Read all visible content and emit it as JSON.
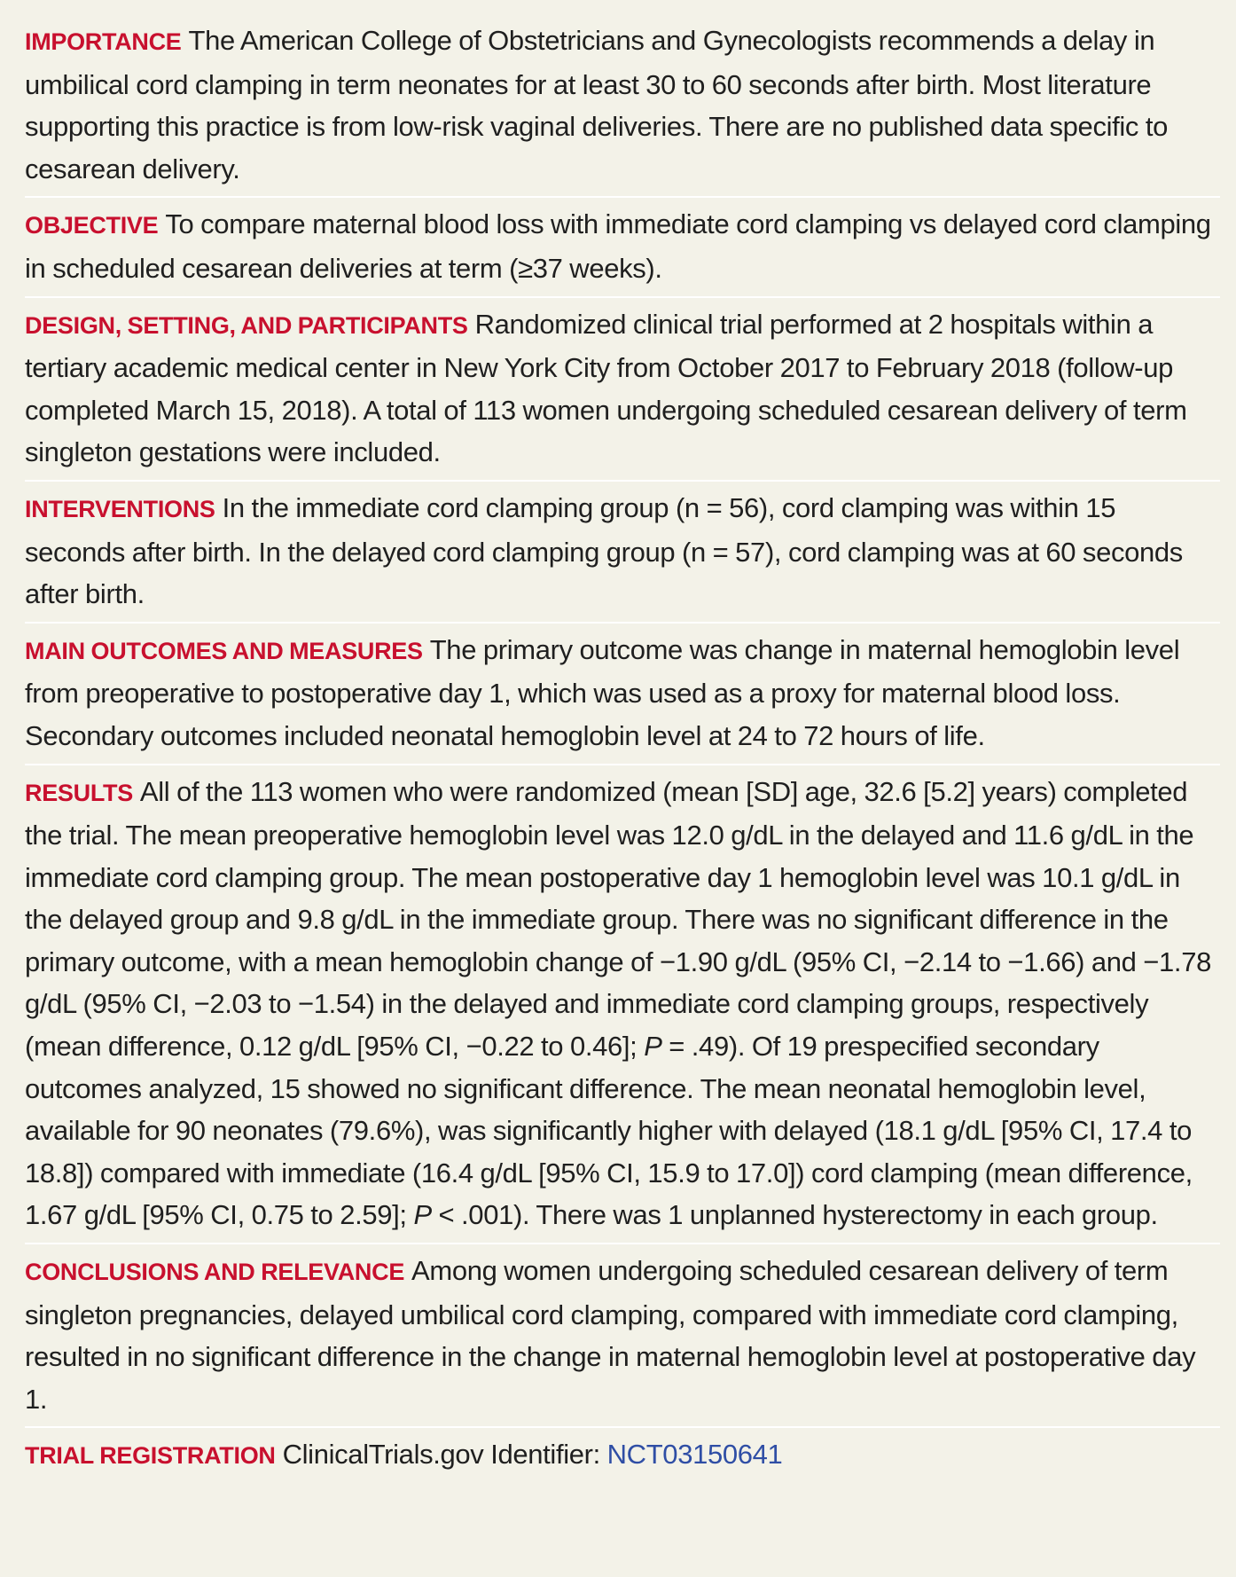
{
  "sections": {
    "importance": {
      "heading": "IMPORTANCE",
      "text": "The American College of Obstetricians and Gynecologists recommends a delay in umbilical cord clamping in term neonates for at least 30 to 60 seconds after birth. Most literature supporting this practice is from low-risk vaginal deliveries. There are no published data specific to cesarean delivery."
    },
    "objective": {
      "heading": "OBJECTIVE",
      "text": "To compare maternal blood loss with immediate cord clamping vs delayed cord clamping in scheduled cesarean deliveries at term (≥37 weeks)."
    },
    "design": {
      "heading": "DESIGN, SETTING, AND PARTICIPANTS",
      "text": "Randomized clinical trial performed at 2 hospitals within a tertiary academic medical center in New York City from October 2017 to February 2018 (follow-up completed March 15, 2018). A total of 113 women undergoing scheduled cesarean delivery of term singleton gestations were included."
    },
    "interventions": {
      "heading": "INTERVENTIONS",
      "text": "In the immediate cord clamping group (n = 56), cord clamping was within 15 seconds after birth. In the delayed cord clamping group (n = 57), cord clamping was at 60 seconds after birth."
    },
    "outcomes": {
      "heading": "MAIN OUTCOMES AND MEASURES",
      "text": "The primary outcome was change in maternal hemoglobin level from preoperative to postoperative day 1, which was used as a proxy for maternal blood loss. Secondary outcomes included neonatal hemoglobin level at 24 to 72 hours of life."
    },
    "results": {
      "heading": "RESULTS",
      "text_1": "All of the 113 women who were randomized (mean [SD] age, 32.6 [5.2] years) completed the trial. The mean preoperative hemoglobin level was 12.0 g/dL in the delayed and 11.6 g/dL in the immediate cord clamping group. The mean postoperative day 1 hemoglobin level was 10.1 g/dL in the delayed group and 9.8 g/dL in the immediate group. There was no significant difference in the primary outcome, with a mean hemoglobin change of −1.90 g/dL (95% CI, −2.14 to −1.66) and −1.78 g/dL (95% CI, −2.03 to −1.54) in the delayed and immediate cord clamping groups, respectively (mean difference, 0.12 g/dL [95% CI, −0.22 to 0.46];",
      "p_1": "P",
      "text_2": "= .49). Of 19 prespecified secondary outcomes analyzed, 15 showed no significant difference. The mean neonatal hemoglobin level, available for 90 neonates (79.6%), was significantly higher with delayed (18.1 g/dL [95% CI, 17.4 to 18.8]) compared with immediate (16.4 g/dL [95% CI, 15.9 to 17.0]) cord clamping (mean difference, 1.67 g/dL [95% CI, 0.75 to 2.59];",
      "p_2": "P",
      "text_3": "< .001). There was 1 unplanned hysterectomy in each group."
    },
    "conclusions": {
      "heading": "CONCLUSIONS AND RELEVANCE",
      "text": "Among women undergoing scheduled cesarean delivery of term singleton pregnancies, delayed umbilical cord clamping, compared with immediate cord clamping, resulted in no significant difference in the change in maternal hemoglobin level at postoperative day 1."
    },
    "registration": {
      "heading": "TRIAL REGISTRATION",
      "text": "ClinicalTrials.gov Identifier:",
      "link": "NCT03150641"
    }
  },
  "colors": {
    "heading": "#c8102e",
    "body_text": "#1f1f1f",
    "link": "#2f4ea5",
    "background": "#f3f2e8",
    "divider": "#ffffff"
  }
}
